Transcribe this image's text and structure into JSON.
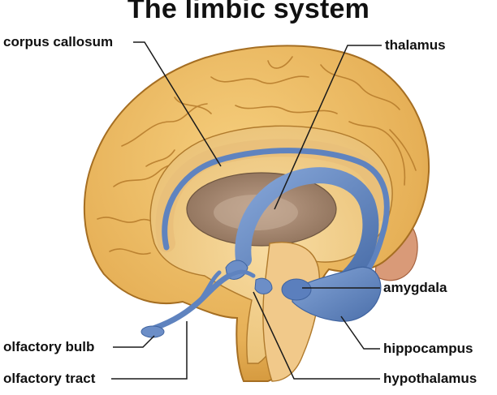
{
  "title": "The limbic system",
  "labels": {
    "corpus_callosum": "corpus callosum",
    "thalamus": "thalamus",
    "amygdala": "amygdala",
    "olfactory_bulb": "olfactory bulb",
    "hippocampus": "hippocampus",
    "olfactory_tract": "olfactory tract",
    "hypothalamus": "hypothalamus"
  },
  "colors": {
    "cortex": "#e9b85c",
    "cortex_dark": "#c98a2e",
    "inner_tissue": "#f3cf8a",
    "thalamus_fill": "#a88a72",
    "limbic_blue": "#6c8ec7",
    "limbic_blue_dark": "#3f639f",
    "cerebellum": "#d58c6a",
    "leader_line": "#1a1a1a"
  }
}
